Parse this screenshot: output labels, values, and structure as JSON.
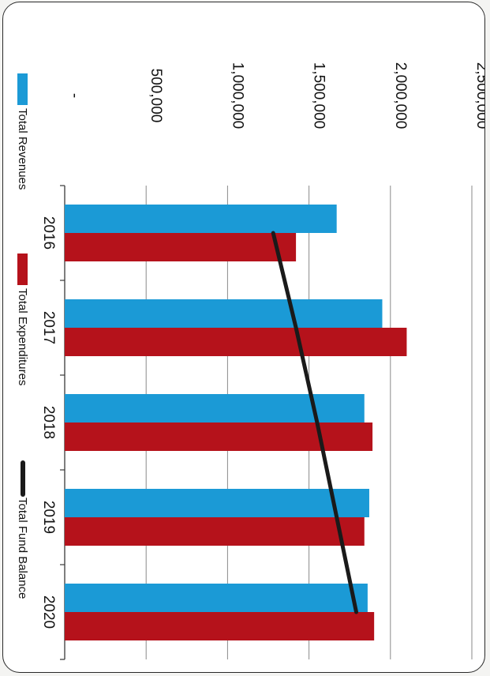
{
  "chart_data": {
    "type": "bar",
    "orientation": "horizontal",
    "categories": [
      "2016",
      "2017",
      "2018",
      "2019",
      "2020"
    ],
    "series": [
      {
        "name": "Total Revenues",
        "kind": "bar",
        "color": "#1b9ad6",
        "values": [
          1670000,
          1950000,
          1840000,
          1870000,
          1860000
        ]
      },
      {
        "name": "Total Expenditures",
        "kind": "bar",
        "color": "#b5121b",
        "values": [
          1420000,
          2100000,
          1890000,
          1840000,
          1900000
        ]
      },
      {
        "name": "Total Fund Balance",
        "kind": "line",
        "color": "#1a1a1a",
        "values": [
          1280000,
          1420000,
          1550000,
          1670000,
          1790000
        ]
      }
    ],
    "value_axis": {
      "min": 0,
      "max": 2500000,
      "ticks": [
        0,
        500000,
        1000000,
        1500000,
        2000000,
        2500000
      ],
      "tick_labels": [
        "-",
        "500,000",
        "1,000,000",
        "1,500,000",
        "2,000,000",
        "2,500,000"
      ]
    },
    "grid": true,
    "legend_position": "left"
  }
}
